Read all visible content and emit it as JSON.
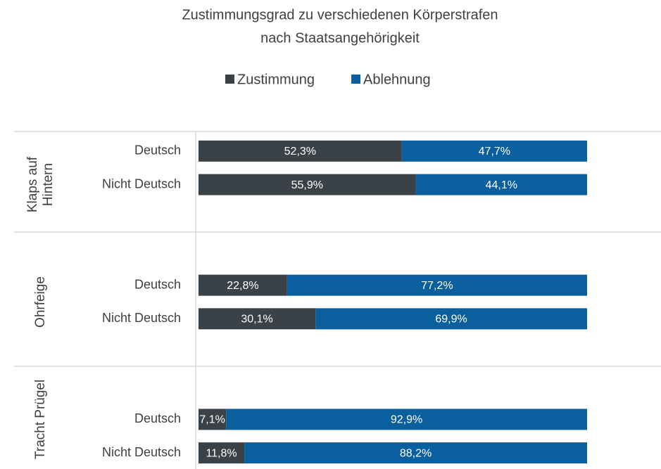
{
  "chart_data": {
    "type": "stacked-bar-horizontal",
    "title": [
      "Zustimmungsgrad zu verschiedenen Körperstrafen",
      "nach Staatsangehörigkeit"
    ],
    "groups": [
      {
        "label": [
          "Klaps auf",
          "Hintern"
        ],
        "categories": [
          "Deutsch",
          "Nicht Deutsch",
          null
        ]
      },
      {
        "label": [
          "Ohrfeige"
        ],
        "categories": [
          null,
          "Deutsch",
          "Nicht Deutsch",
          null
        ]
      },
      {
        "label": [
          "Tracht Prügel"
        ],
        "categories": [
          null,
          "Deutsch",
          "Nicht Deutsch"
        ]
      }
    ],
    "series": [
      {
        "name": "Zustimmung",
        "color": "#3a4248",
        "values": [
          52.3,
          55.9,
          null,
          null,
          22.8,
          30.1,
          null,
          null,
          7.1,
          11.8
        ],
        "value_labels": [
          "52,3%",
          "55,9%",
          null,
          null,
          "22,8%",
          "30,1%",
          null,
          null,
          "7,1%",
          "11,8%"
        ]
      },
      {
        "name": "Ablehnung",
        "color": "#0a5f9e",
        "values": [
          47.7,
          44.1,
          null,
          null,
          77.2,
          69.9,
          null,
          null,
          92.9,
          88.2
        ],
        "value_labels": [
          "47,7%",
          "44,1%",
          null,
          null,
          "77,2%",
          "69,9%",
          null,
          null,
          "92,9%",
          "88,2%"
        ]
      }
    ],
    "xlim": [
      0,
      100
    ],
    "legend": "top"
  }
}
